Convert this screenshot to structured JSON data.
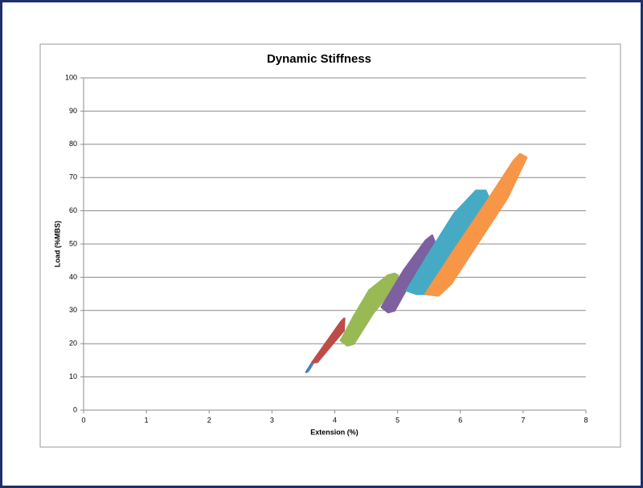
{
  "chart_data": {
    "type": "line",
    "title": "Dynamic Stiffness",
    "x_label": "Extension (%)",
    "y_label": "Load (%MBS)",
    "xlim": [
      0,
      8
    ],
    "xticks": [
      0,
      1,
      2,
      3,
      4,
      5,
      6,
      7,
      8
    ],
    "ylim": [
      0,
      100
    ],
    "yticks": [
      0,
      10,
      20,
      30,
      40,
      50,
      60,
      70,
      80,
      90,
      100
    ],
    "grid": true,
    "series": [
      {
        "color": "#4a7ebb",
        "x": [
          3.55,
          3.65,
          3.68,
          3.58,
          3.55
        ],
        "values": [
          11.5,
          14.5,
          15,
          12,
          11.5
        ]
      },
      {
        "color": "#be4b48",
        "x": [
          3.65,
          4.1,
          4.15,
          4.14,
          3.72,
          3.65
        ],
        "values": [
          14.5,
          26.5,
          27.5,
          24,
          14.5,
          14.5
        ]
      },
      {
        "color": "#98b954",
        "x": [
          4.1,
          4.3,
          4.55,
          4.85,
          4.95,
          5.0,
          4.9,
          4.6,
          4.3,
          4.2,
          4.1
        ],
        "values": [
          21,
          28,
          36,
          40.5,
          41,
          40.5,
          36,
          29,
          20,
          19.5,
          21
        ]
      },
      {
        "color": "#7d60a0",
        "x": [
          4.75,
          5.1,
          5.45,
          5.55,
          5.6,
          5.3,
          4.95,
          4.85,
          4.75
        ],
        "values": [
          31,
          42,
          51,
          52.5,
          50,
          42,
          30,
          29.5,
          31
        ]
      },
      {
        "color": "#46aac5",
        "x": [
          5.15,
          5.5,
          5.9,
          6.25,
          6.4,
          6.45,
          6.2,
          5.85,
          5.55,
          5.3,
          5.15
        ],
        "values": [
          36,
          47,
          59,
          66,
          66,
          64,
          57,
          47,
          35,
          35,
          36
        ]
      },
      {
        "color": "#f79646",
        "x": [
          5.45,
          5.9,
          6.4,
          6.85,
          6.95,
          7.05,
          6.75,
          6.3,
          5.85,
          5.65,
          5.45
        ],
        "values": [
          35,
          48,
          62,
          75,
          77,
          76,
          64,
          51,
          38,
          34.5,
          35
        ]
      }
    ]
  }
}
